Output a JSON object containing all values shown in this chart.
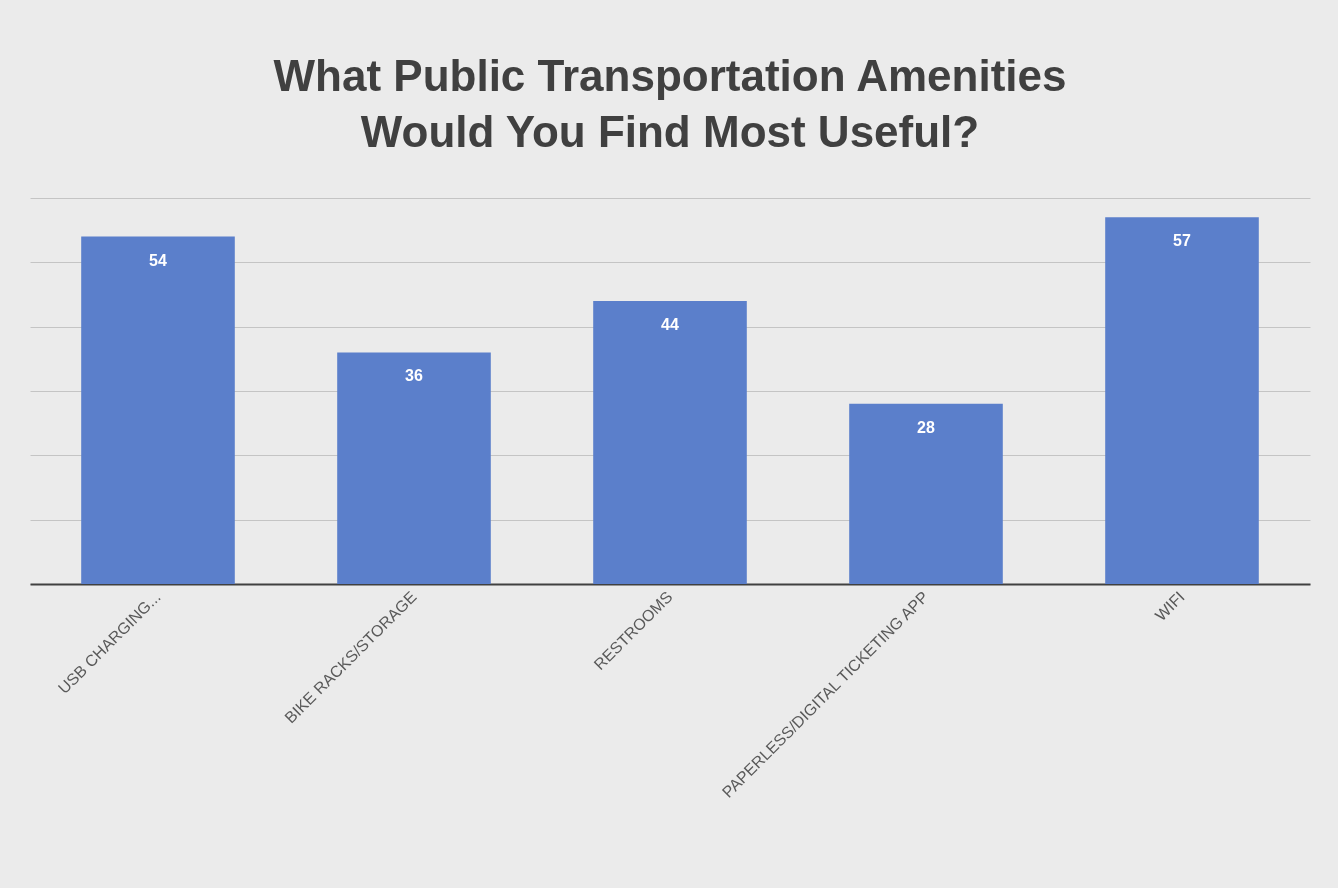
{
  "chart_data": {
    "type": "bar",
    "title": "What Public Transportation Amenities Would You Find Most Useful?",
    "categories": [
      "USB CHARGING...",
      "BIKE RACKS/STORAGE",
      "RESTROOMS",
      "PAPERLESS/DIGITAL TICKETING APP",
      "WIFI"
    ],
    "values": [
      54,
      36,
      44,
      28,
      57
    ],
    "color": "#5b7fcb",
    "ylim": [
      0,
      60
    ],
    "yticks": [
      {
        "value": 0,
        "label": null
      },
      {
        "value": 10,
        "label": null
      },
      {
        "value": 20,
        "label": null
      },
      {
        "value": 30,
        "label": null
      },
      {
        "value": 40,
        "label": null
      },
      {
        "value": 50,
        "label": null
      },
      {
        "value": 60,
        "label": null
      }
    ],
    "grid": "y",
    "tick_labels": "x",
    "data_labels": true
  }
}
